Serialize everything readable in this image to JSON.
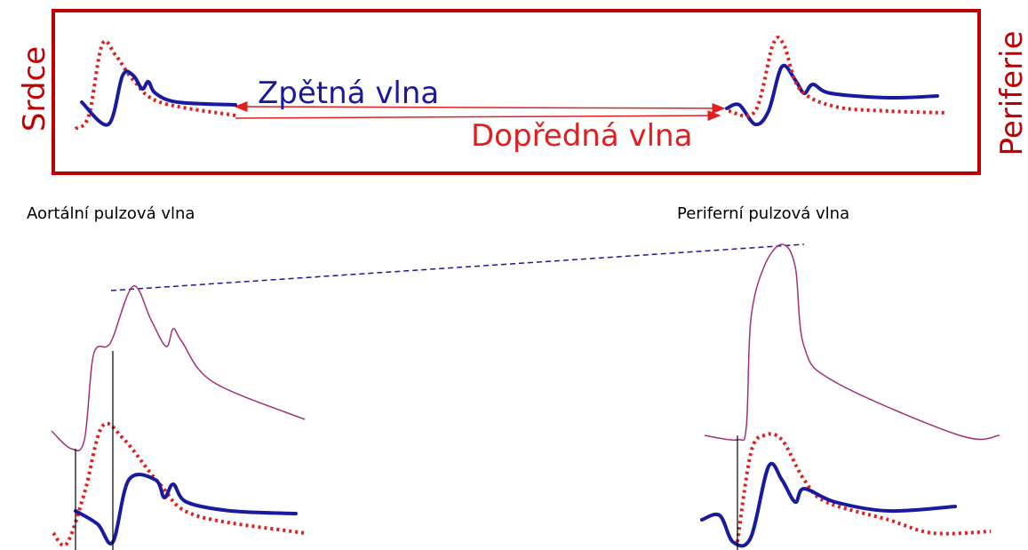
{
  "left_label": "Srdce",
  "right_label": "Periferie",
  "backward_wave": "Zpětná vlna",
  "forward_wave": "Dopředná vlna",
  "aortic_label": "Aortální pulzová vlna",
  "peripheral_label": "Periferní pulzová vlna"
}
